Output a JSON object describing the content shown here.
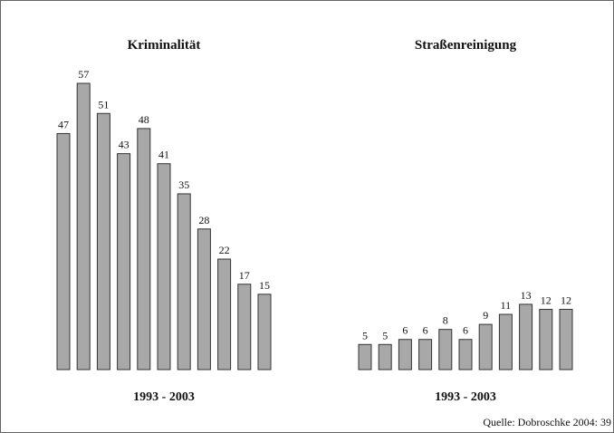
{
  "chart_data": [
    {
      "type": "bar",
      "title": "Kriminalität",
      "xlabel": "1993 - 2003",
      "values": [
        47,
        57,
        51,
        43,
        48,
        41,
        35,
        28,
        22,
        17,
        15
      ],
      "color": "#a8a8a8"
    },
    {
      "type": "bar",
      "title": "Straßenreinigung",
      "xlabel": "1993 - 2003",
      "values": [
        5,
        5,
        6,
        6,
        8,
        6,
        9,
        11,
        13,
        12,
        12
      ],
      "color": "#a8a8a8"
    }
  ],
  "source": "Quelle: Dobroschke 2004: 39"
}
